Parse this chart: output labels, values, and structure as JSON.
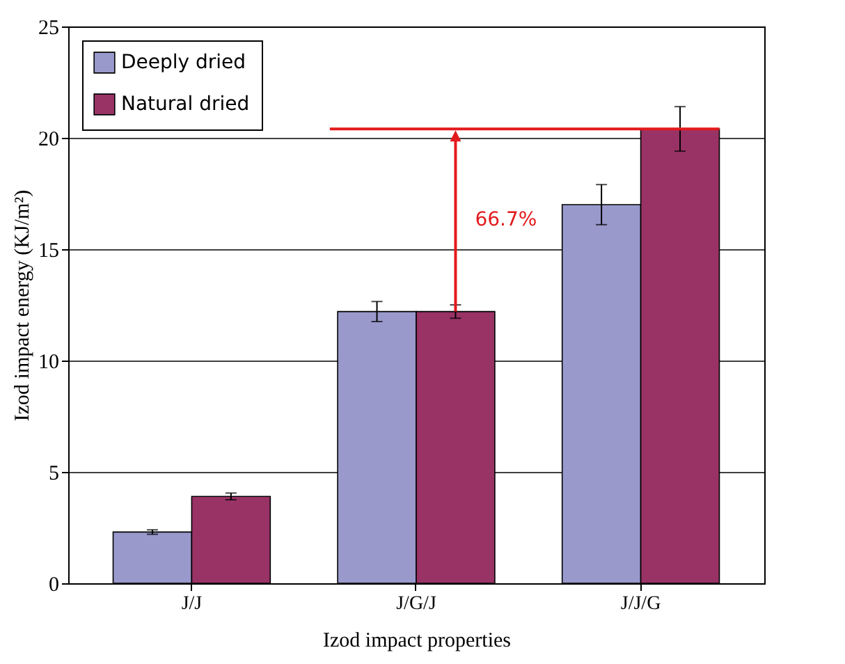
{
  "chart_data": {
    "type": "bar",
    "xlabel": "Izod impact properties",
    "ylabel": "Izod impact energy (KJ/m²)",
    "categories": [
      "J/J",
      "J/G/J",
      "J/J/G"
    ],
    "series": [
      {
        "name": "Deeply dried",
        "color": "#9999cc",
        "values": [
          2.3,
          12.2,
          17.0
        ],
        "errors": [
          0.1,
          0.45,
          0.9
        ]
      },
      {
        "name": "Natural dried",
        "color": "#993366",
        "values": [
          3.9,
          12.2,
          20.4
        ],
        "errors": [
          0.15,
          0.3,
          1.0
        ]
      }
    ],
    "ylim": [
      0,
      25
    ],
    "yticks": [
      0,
      5,
      10,
      15,
      20,
      25
    ],
    "grid": "y",
    "legend": "top left",
    "ref_lines": [
      {
        "axis": "y",
        "value": 20.4,
        "color": "#e31a1c"
      }
    ],
    "annotations": [
      "66.7%"
    ]
  }
}
